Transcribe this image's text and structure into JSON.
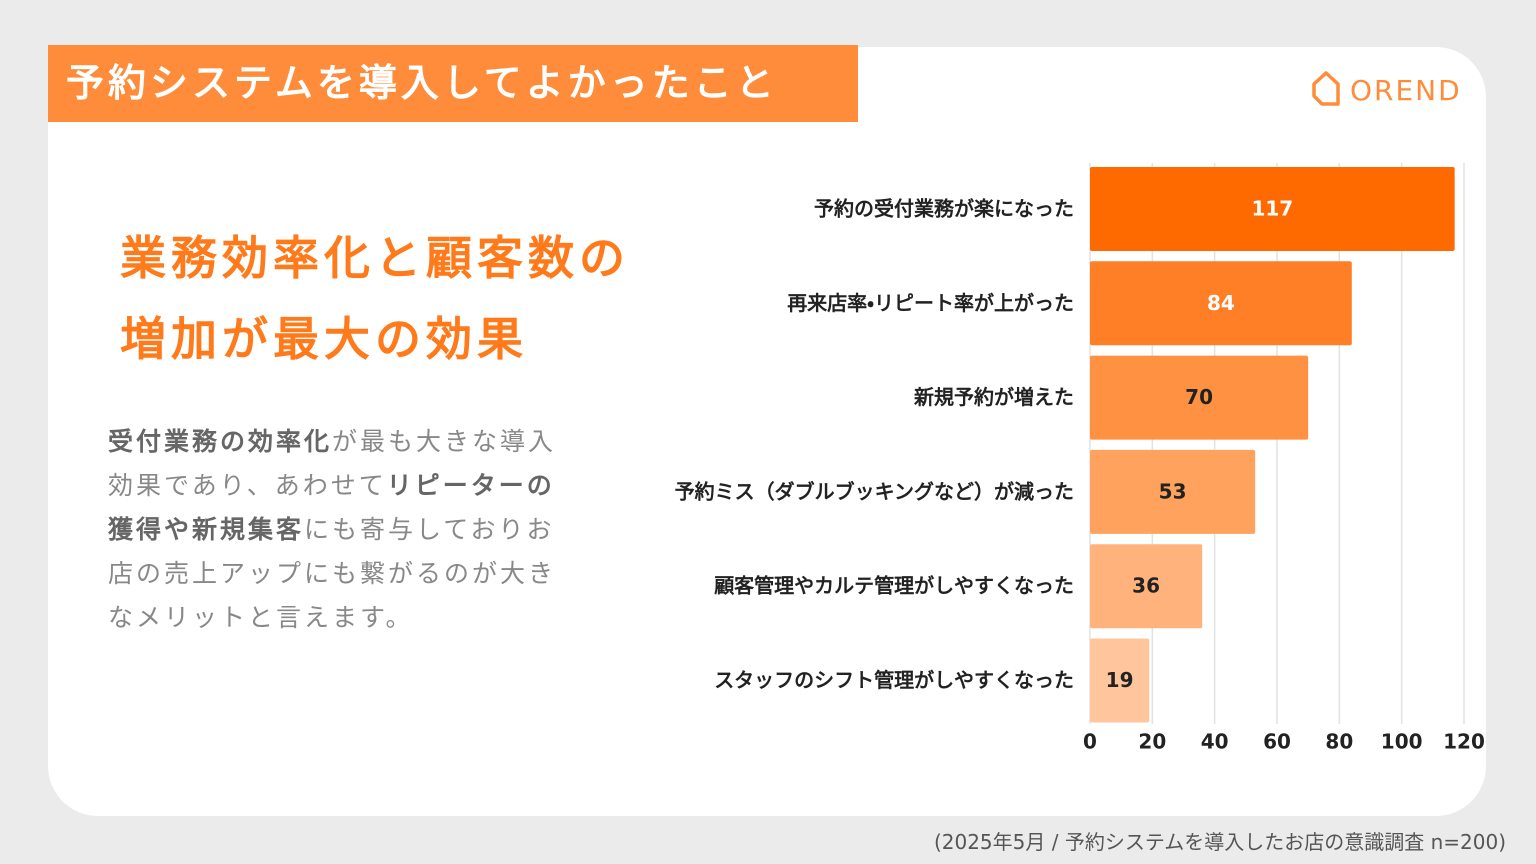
{
  "header": {
    "title": "予約システムを導入してよかったこと",
    "logo": "OREND"
  },
  "headline": [
    "業務効率化と顧客数の",
    "増加が最大の効果"
  ],
  "body": [
    [
      {
        "text": "受付業務の効率化",
        "bold": true
      },
      {
        "text": "が最も大きな導入",
        "bold": false
      }
    ],
    [
      {
        "text": "効果であり、あわせて",
        "bold": false
      },
      {
        "text": "リピーターの",
        "bold": true
      }
    ],
    [
      {
        "text": "獲得や新規集客",
        "bold": true
      },
      {
        "text": "にも寄与しておりお",
        "bold": false
      }
    ],
    [
      {
        "text": "店の売上アップにも繋がるのが大き",
        "bold": false
      }
    ],
    [
      {
        "text": "なメリットと言えます。",
        "bold": false
      }
    ]
  ],
  "footnote": "(2025年5月 / 予約システムを導入したお店の意識調査 n=200)",
  "chart_data": {
    "type": "hbar",
    "categories": [
      "予約の受付業務が楽になった",
      "再来店率・リピート率が上がった",
      "新規予約が増えた",
      "予約ミス（ダブルブッキングなど）が減った",
      "顧客管理やカルテ管理がしやすくなった",
      "スタッフのシフト管理がしやすくなった"
    ],
    "values": [
      117,
      84,
      70,
      53,
      36,
      19
    ],
    "colors": [
      "#ff6a00",
      "#ff7f27",
      "#ff9142",
      "#ffa25e",
      "#ffb27c",
      "#ffc59c"
    ],
    "value_label_colors": [
      "#ffffff",
      "#ffffff",
      "#222222",
      "#222222",
      "#222222",
      "#222222"
    ],
    "xlim": [
      0,
      120
    ],
    "xticks": [
      0,
      20,
      40,
      60,
      80,
      100,
      120
    ],
    "grid": true
  }
}
